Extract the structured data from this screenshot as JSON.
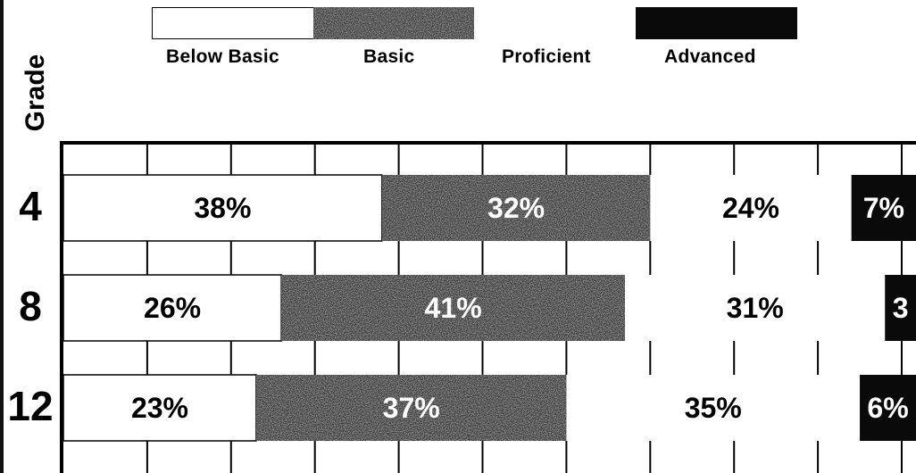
{
  "colors": {
    "below_basic": "#ffffff",
    "basic": "#3a3a3a",
    "proficient": "#ffffff",
    "advanced": "#0a0a0a",
    "grid": "#000000"
  },
  "legend": {
    "items": [
      {
        "label": "Below Basic",
        "color": "#ffffff"
      },
      {
        "label": "Basic",
        "color": "#3a3a3a"
      },
      {
        "label": "Proficient",
        "color": "#ffffff"
      },
      {
        "label": "Advanced",
        "color": "#0a0a0a"
      }
    ]
  },
  "y_title": "Grade",
  "chart_data": {
    "type": "bar",
    "orientation": "horizontal",
    "stacked": true,
    "ylabel": "Grade",
    "categories": [
      "4",
      "8",
      "12"
    ],
    "series": [
      {
        "name": "Below Basic",
        "values": [
          38,
          26,
          23
        ],
        "labels": [
          "38%",
          "26%",
          "23%"
        ]
      },
      {
        "name": "Basic",
        "values": [
          32,
          41,
          37
        ],
        "labels": [
          "32%",
          "41%",
          "37%"
        ]
      },
      {
        "name": "Proficient",
        "values": [
          24,
          31,
          35
        ],
        "labels": [
          "24%",
          "31%",
          "35%"
        ]
      },
      {
        "name": "Advanced",
        "values": [
          7,
          3,
          6
        ],
        "labels": [
          "7%",
          "3",
          "6%"
        ]
      }
    ],
    "xlim": [
      0,
      100
    ],
    "grid": true
  }
}
